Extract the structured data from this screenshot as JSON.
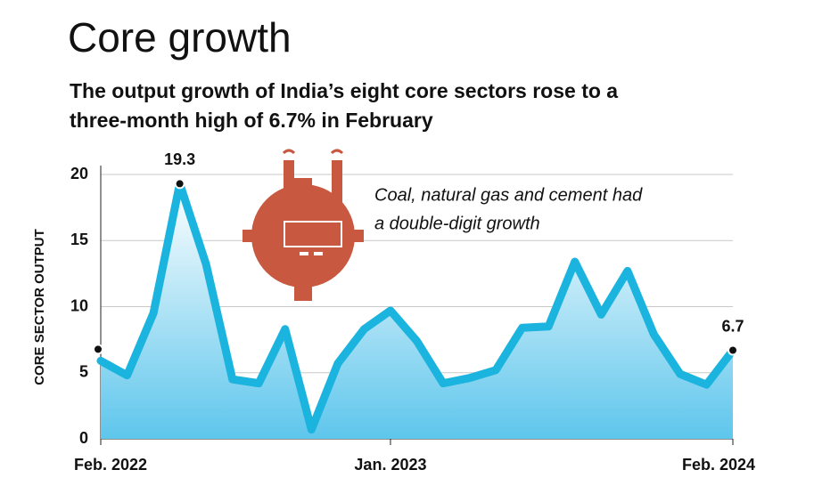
{
  "chart_data": {
    "type": "line",
    "title": "Core growth",
    "subtitle": [
      "The output growth of India’s eight core sectors rose to a",
      "three-month high of 6.7% in February"
    ],
    "annotation": [
      "Coal, natural gas and cement had",
      "a double-digit growth"
    ],
    "y_label": "CORE SECTOR OUTPUT",
    "categories": [
      "Feb. 2022",
      null,
      null,
      null,
      null,
      null,
      null,
      null,
      null,
      null,
      null,
      "Jan. 2023",
      null,
      null,
      null,
      null,
      null,
      null,
      null,
      null,
      null,
      null,
      null,
      null,
      "Feb. 2024"
    ],
    "values": [
      5.9,
      4.8,
      9.5,
      19.3,
      13.2,
      4.5,
      4.2,
      8.3,
      0.7,
      5.7,
      8.3,
      9.7,
      7.4,
      4.2,
      4.6,
      5.2,
      8.4,
      8.5,
      13.4,
      9.4,
      12.7,
      7.9,
      4.9,
      4.1,
      6.7
    ],
    "color": "#1ab4de",
    "ylim": [
      0,
      20
    ],
    "yticks": [
      0,
      5,
      10,
      15,
      20
    ],
    "grid": true
  }
}
